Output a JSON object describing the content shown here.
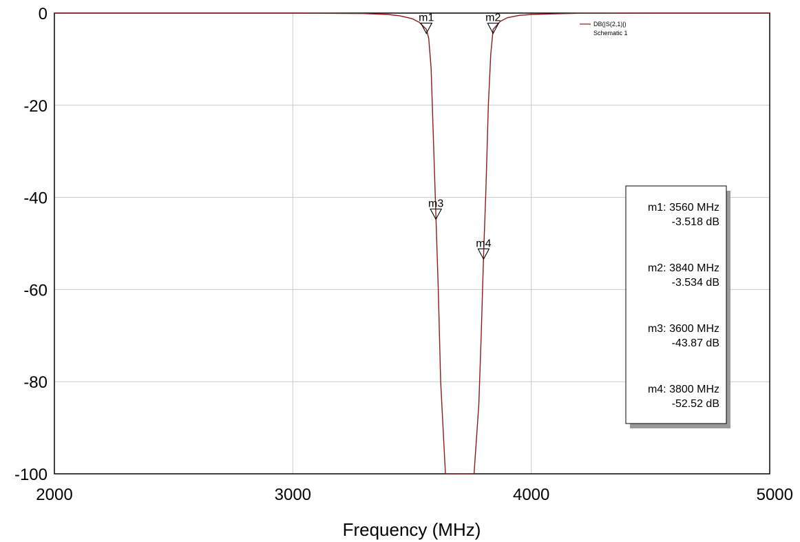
{
  "chart_data": {
    "type": "line",
    "title": "",
    "xlabel": "Frequency (MHz)",
    "ylabel": "",
    "xlim": [
      2000,
      5000
    ],
    "ylim": [
      -100,
      0
    ],
    "xticks": [
      2000,
      3000,
      4000,
      5000
    ],
    "yticks": [
      0,
      -20,
      -40,
      -60,
      -80,
      -100
    ],
    "grid": true,
    "colors": {
      "trace": "#8b1a1a",
      "grid": "#c8c8c8",
      "axis": "#000000"
    },
    "legend": {
      "position": "top-right",
      "entries": [
        "DB(|S(2,1)|)",
        "Schematic 1"
      ]
    },
    "series": [
      {
        "name": "DB(|S(2,1)|)",
        "x": [
          2000,
          3000,
          3300,
          3400,
          3450,
          3500,
          3530,
          3560,
          3570,
          3580,
          3590,
          3600,
          3610,
          3620,
          3640,
          3700,
          3760,
          3780,
          3790,
          3800,
          3810,
          3820,
          3830,
          3840,
          3870,
          3900,
          3950,
          4000,
          4100,
          4200,
          4600,
          5000
        ],
        "y": [
          0,
          0,
          -0.1,
          -0.3,
          -0.6,
          -1.2,
          -2.0,
          -3.518,
          -5.5,
          -12,
          -28,
          -43.87,
          -60,
          -80,
          -100,
          -100,
          -100,
          -85,
          -70,
          -52.52,
          -38,
          -20,
          -9,
          -3.534,
          -1.8,
          -1.0,
          -0.5,
          -0.3,
          -0.15,
          -0.05,
          0,
          0
        ]
      }
    ],
    "markers": [
      {
        "label": "m1",
        "x": 3560,
        "y": -3.518
      },
      {
        "label": "m2",
        "x": 3840,
        "y": -3.534
      },
      {
        "label": "m3",
        "x": 3600,
        "y": -43.87
      },
      {
        "label": "m4",
        "x": 3800,
        "y": -52.52
      }
    ],
    "readout": [
      {
        "line1": "m1: 3560 MHz",
        "line2": "-3.518 dB"
      },
      {
        "line1": "m2: 3840 MHz",
        "line2": "-3.534 dB"
      },
      {
        "line1": "m3: 3600 MHz",
        "line2": "-43.87 dB"
      },
      {
        "line1": "m4: 3800 MHz",
        "line2": "-52.52 dB"
      }
    ]
  }
}
